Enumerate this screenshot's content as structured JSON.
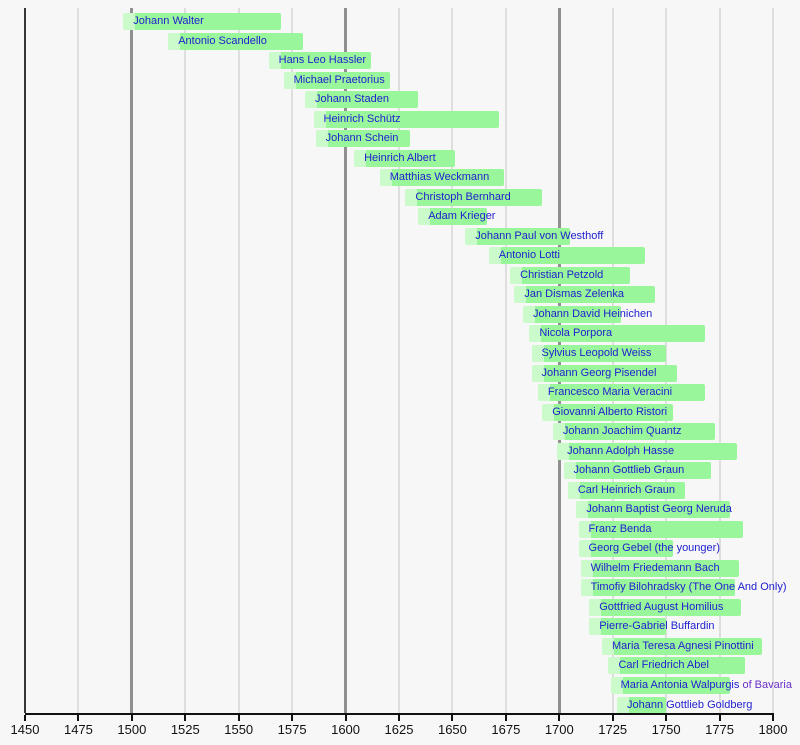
{
  "page": {
    "background": "#f7f7f7"
  },
  "colors": {
    "bar_fill": "#9af69a",
    "bar_fill_pale": "#cbfbcb",
    "link_blue": "#2020d0",
    "link_visited_purple": "#6a30c8",
    "grid_major": "#909090",
    "grid_minor": "#dedede",
    "axis_line": "#383838",
    "axis_text": "#111111"
  },
  "chart_data": {
    "type": "bar",
    "variant": "horizontal-timeline-lifespans",
    "title": "",
    "xlabel": "",
    "ylabel": "",
    "xlim": [
      1450,
      1800
    ],
    "x_ticks": [
      1450,
      1475,
      1500,
      1525,
      1550,
      1575,
      1600,
      1625,
      1650,
      1675,
      1700,
      1725,
      1750,
      1775,
      1800
    ],
    "grid_major_years": [
      1500,
      1600,
      1700
    ],
    "axis_line_year": 1450,
    "legend": "none",
    "series": [
      {
        "label": "Johann Walter",
        "suffix": "",
        "from": 1496,
        "till": 1570
      },
      {
        "label": "Antonio Scandello",
        "suffix": "",
        "from": 1517,
        "till": 1580
      },
      {
        "label": "Hans Leo Hassler",
        "suffix": "",
        "from": 1564,
        "till": 1612
      },
      {
        "label": "Michael Praetorius",
        "suffix": "",
        "from": 1571,
        "till": 1621
      },
      {
        "label": "Johann Staden",
        "suffix": "",
        "from": 1581,
        "till": 1634
      },
      {
        "label": "Heinrich Schütz",
        "suffix": "",
        "from": 1585,
        "till": 1672
      },
      {
        "label": "Johann Schein",
        "suffix": "",
        "from": 1586,
        "till": 1630
      },
      {
        "label": "Heinrich Albert",
        "suffix": "",
        "from": 1604,
        "till": 1651
      },
      {
        "label": "Matthias Weckmann",
        "suffix": "",
        "from": 1616,
        "till": 1674
      },
      {
        "label": "Christoph Bernhard",
        "suffix": "",
        "from": 1628,
        "till": 1692
      },
      {
        "label": "Adam Krieger",
        "suffix": "",
        "from": 1634,
        "till": 1666
      },
      {
        "label": "Johann Paul von Westhoff",
        "suffix": "",
        "from": 1656,
        "till": 1705
      },
      {
        "label": "Antonio Lotti",
        "suffix": "",
        "from": 1667,
        "till": 1740
      },
      {
        "label": "Christian Petzold",
        "suffix": "",
        "from": 1677,
        "till": 1733
      },
      {
        "label": "Jan Dismas Zelenka",
        "suffix": "",
        "from": 1679,
        "till": 1745
      },
      {
        "label": "Johann David Heinichen",
        "suffix": "",
        "from": 1683,
        "till": 1729
      },
      {
        "label": "Nicola Porpora",
        "suffix": "",
        "from": 1686,
        "till": 1768
      },
      {
        "label": "Sylvius Leopold Weiss",
        "suffix": "",
        "from": 1687,
        "till": 1750
      },
      {
        "label": "Johann Georg Pisendel",
        "suffix": "",
        "from": 1687,
        "till": 1755
      },
      {
        "label": "Francesco Maria Veracini",
        "suffix": "",
        "from": 1690,
        "till": 1768
      },
      {
        "label": "Giovanni Alberto Ristori",
        "suffix": "",
        "from": 1692,
        "till": 1753
      },
      {
        "label": "Johann Joachim Quantz",
        "suffix": "",
        "from": 1697,
        "till": 1773
      },
      {
        "label": "Johann Adolph Hasse",
        "suffix": "",
        "from": 1699,
        "till": 1783
      },
      {
        "label": "Johann Gottlieb Graun",
        "suffix": "",
        "from": 1702,
        "till": 1771
      },
      {
        "label": "Carl Heinrich Graun",
        "suffix": "",
        "from": 1704,
        "till": 1759
      },
      {
        "label": "Johann Baptist Georg Neruda",
        "suffix": "",
        "from": 1708,
        "till": 1780
      },
      {
        "label": "Franz Benda",
        "suffix": "",
        "from": 1709,
        "till": 1786
      },
      {
        "label": "Georg Gebel (the younger)",
        "suffix": "",
        "from": 1709,
        "till": 1753
      },
      {
        "label": "Wilhelm Friedemann Bach",
        "suffix": "",
        "from": 1710,
        "till": 1784
      },
      {
        "label": "Timofiy Bilohradsky (The One And Only)",
        "suffix": "",
        "from": 1710,
        "till": 1782
      },
      {
        "label": "Gottfried August Homilius",
        "suffix": "",
        "from": 1714,
        "till": 1785
      },
      {
        "label": "Pierre-Gabriel Buffardin",
        "suffix": "",
        "from": 1714,
        "till": 1750
      },
      {
        "label": "Maria Teresa Agnesi Pinottini",
        "suffix": "",
        "from": 1720,
        "till": 1795
      },
      {
        "label": "Carl Friedrich Abel",
        "suffix": "",
        "from": 1723,
        "till": 1787
      },
      {
        "label": "Maria Antonia Walpurgis",
        "suffix": "of Bavaria",
        "from": 1724,
        "till": 1780
      },
      {
        "label": "Johann Gottlieb Goldberg",
        "suffix": "",
        "from": 1727,
        "till": 1750
      }
    ]
  }
}
